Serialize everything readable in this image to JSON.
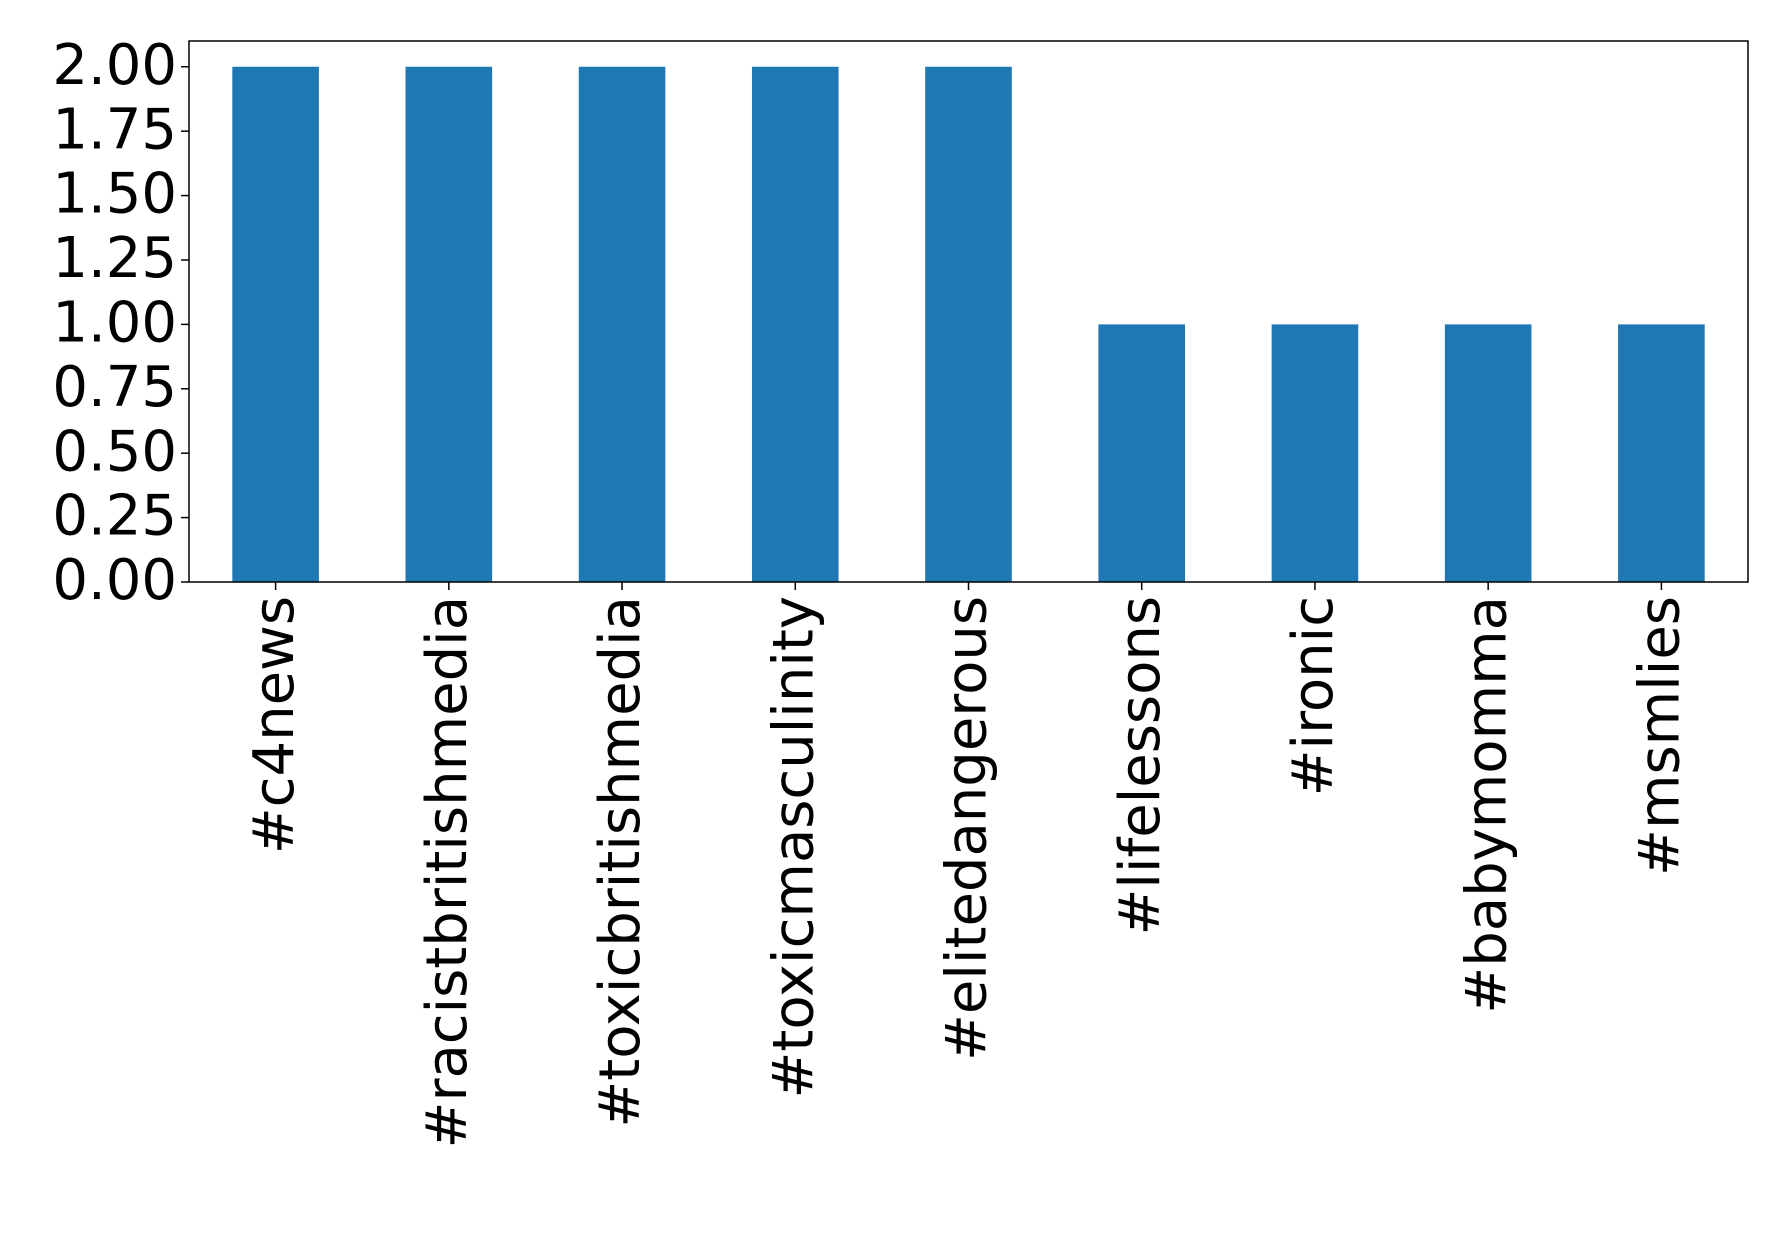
{
  "chart_data": {
    "type": "bar",
    "categories": [
      "#c4news",
      "#racistbritishmedia",
      "#toxicbritishmedia",
      "#toxicmasculinity",
      "#elitedangerous",
      "#lifelessons",
      "#ironic",
      "#babymomma",
      "#msmlies"
    ],
    "values": [
      2,
      2,
      2,
      2,
      2,
      1,
      1,
      1,
      1
    ],
    "color": "#1f77b4",
    "ylim": [
      0,
      2.1
    ],
    "yticks": [
      {
        "value": 0,
        "label": "0.00"
      },
      {
        "value": 0.25,
        "label": "0.25"
      },
      {
        "value": 0.5,
        "label": "0.50"
      },
      {
        "value": 0.75,
        "label": "0.75"
      },
      {
        "value": 1,
        "label": "1.00"
      },
      {
        "value": 1.25,
        "label": "1.25"
      },
      {
        "value": 1.5,
        "label": "1.50"
      },
      {
        "value": 1.75,
        "label": "1.75"
      },
      {
        "value": 2,
        "label": "2.00"
      }
    ],
    "grid": false
  }
}
